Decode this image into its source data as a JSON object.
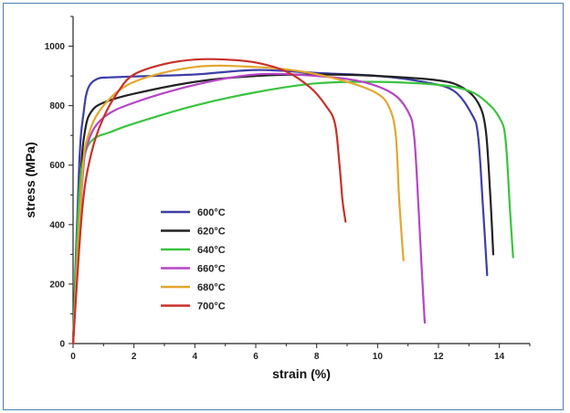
{
  "chart_data": {
    "type": "line",
    "title": "",
    "xlabel": "strain (%)",
    "ylabel": "stress (MPa)",
    "xlim": [
      0,
      15
    ],
    "ylim": [
      0,
      1100
    ],
    "xticks": [
      0,
      2,
      4,
      6,
      8,
      10,
      12,
      14
    ],
    "yticks": [
      0,
      200,
      400,
      600,
      800,
      1000
    ],
    "grid": false,
    "legend": "center-left",
    "series": [
      {
        "name": "600°C",
        "color": "#3d3fa6",
        "x": [
          0,
          0.2,
          0.35,
          0.5,
          0.8,
          1.2,
          2,
          4,
          6,
          8,
          10,
          11.5,
          12.5,
          13.1,
          13.3,
          13.45,
          13.6
        ],
        "y": [
          0,
          600,
          780,
          860,
          890,
          895,
          898,
          905,
          920,
          910,
          900,
          880,
          850,
          770,
          700,
          480,
          230
        ]
      },
      {
        "name": "620°C",
        "color": "#222222",
        "x": [
          0,
          0.25,
          0.4,
          0.6,
          1,
          2,
          4,
          6,
          8,
          10,
          12,
          12.8,
          13.3,
          13.55,
          13.7,
          13.8
        ],
        "y": [
          0,
          560,
          720,
          780,
          810,
          840,
          880,
          900,
          905,
          900,
          885,
          860,
          810,
          720,
          500,
          300
        ]
      },
      {
        "name": "640°C",
        "color": "#39c43f",
        "x": [
          0,
          0.2,
          0.4,
          0.7,
          1.2,
          2,
          4,
          6,
          8,
          10,
          12,
          13,
          13.6,
          14,
          14.2,
          14.35,
          14.45
        ],
        "y": [
          0,
          500,
          640,
          690,
          710,
          740,
          800,
          845,
          875,
          880,
          870,
          850,
          810,
          760,
          690,
          450,
          290
        ]
      },
      {
        "name": "660°C",
        "color": "#b545c6",
        "x": [
          0,
          0.3,
          0.5,
          1,
          2,
          4,
          6,
          8,
          9.5,
          10.5,
          11,
          11.2,
          11.35,
          11.45,
          11.55
        ],
        "y": [
          0,
          540,
          680,
          760,
          810,
          870,
          905,
          900,
          880,
          840,
          780,
          700,
          450,
          250,
          70
        ]
      },
      {
        "name": "680°C",
        "color": "#e3a72e",
        "x": [
          0,
          0.3,
          0.5,
          1,
          2,
          4,
          6,
          7.5,
          9,
          10,
          10.4,
          10.6,
          10.7,
          10.8,
          10.85
        ],
        "y": [
          0,
          560,
          700,
          800,
          880,
          930,
          930,
          915,
          880,
          840,
          790,
          700,
          500,
          350,
          280
        ]
      },
      {
        "name": "700°C",
        "color": "#c9302a",
        "x": [
          0,
          0.3,
          0.6,
          1,
          1.5,
          2,
          3,
          4,
          5,
          6,
          7,
          7.8,
          8.3,
          8.6,
          8.75,
          8.85,
          8.95
        ],
        "y": [
          0,
          450,
          640,
          760,
          850,
          905,
          940,
          955,
          955,
          945,
          915,
          860,
          800,
          740,
          600,
          480,
          410
        ]
      }
    ]
  }
}
